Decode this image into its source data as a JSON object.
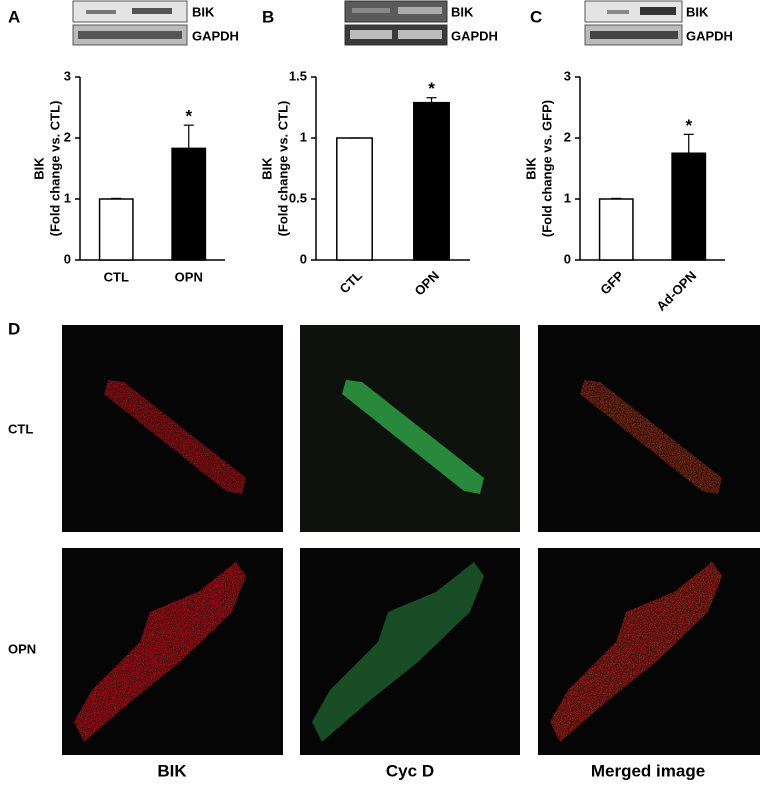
{
  "chart_data": [
    {
      "type": "bar",
      "ylabel": [
        "BIK",
        "(Fold change vs. CTL)"
      ],
      "categories": [
        "CTL",
        "OPN"
      ],
      "values": [
        1,
        1.83
      ],
      "errors": [
        0.01,
        0.38
      ],
      "colors": [
        "#ffffff",
        "#000000"
      ],
      "ylim": [
        0,
        3
      ],
      "yticks": [
        0,
        1,
        2,
        3
      ],
      "annotations": [
        {
          "text": "*",
          "x": "OPN"
        }
      ]
    },
    {
      "type": "bar",
      "ylabel": [
        "BIK",
        "(Fold change vs. CTL)"
      ],
      "categories": [
        "CTL",
        "OPN"
      ],
      "values": [
        1,
        1.29
      ],
      "errors": [
        0,
        0.04
      ],
      "colors": [
        "#ffffff",
        "#000000"
      ],
      "ylim": [
        0,
        1.5
      ],
      "yticks": [
        0,
        0.5,
        1,
        1.5
      ],
      "annotations": [
        {
          "text": "*",
          "x": "OPN"
        }
      ]
    },
    {
      "type": "bar",
      "ylabel": [
        "BIK",
        "(Fold change vs. GFP)"
      ],
      "categories": [
        "GFP",
        "Ad-OPN"
      ],
      "values": [
        1,
        1.75
      ],
      "errors": [
        0.01,
        0.31
      ],
      "colors": [
        "#ffffff",
        "#000000"
      ],
      "ylim": [
        0,
        3
      ],
      "yticks": [
        0,
        1,
        2,
        3
      ],
      "annotations": [
        {
          "text": "*",
          "x": "Ad-OPN"
        }
      ]
    }
  ],
  "figure": {
    "panel_labels": [
      "A",
      "B",
      "C",
      "D"
    ],
    "blot_labels": [
      [
        "BIK",
        "GAPDH"
      ],
      [
        "BIK",
        "GAPDH"
      ],
      [
        "BIK",
        "GAPDH"
      ]
    ],
    "row_labels": [
      "CTL",
      "OPN"
    ],
    "column_labels": [
      "BIK",
      "Cyc D",
      "Merged image"
    ]
  }
}
